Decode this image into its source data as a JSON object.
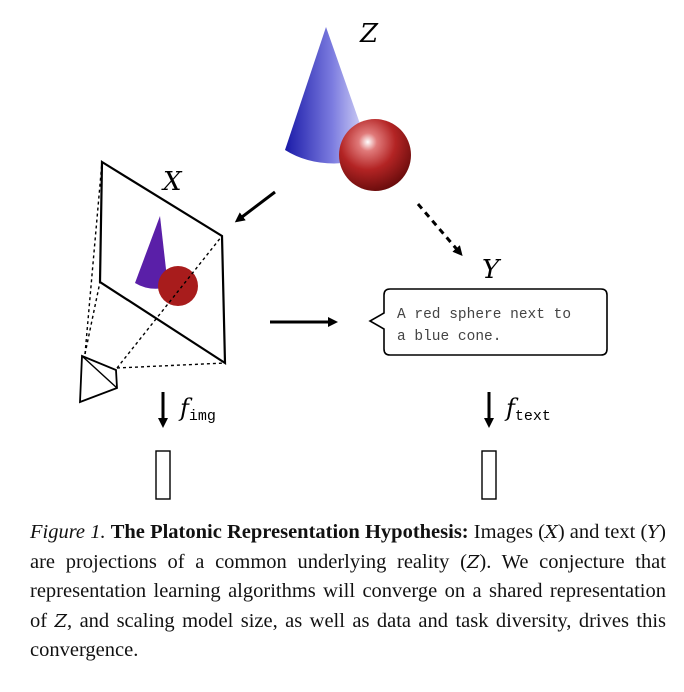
{
  "diagram": {
    "label_z": "Z",
    "label_x": "X",
    "label_y": "Y",
    "text_box_line1": "A red sphere next to",
    "text_box_line2": "a blue cone.",
    "f_img_symbol": "f",
    "f_img_sub": "img",
    "f_text_symbol": "f",
    "f_text_sub": "text",
    "colors": {
      "cone_blue": "#1f1fb0",
      "sphere_red": "#a81c1c",
      "cone_purple": "#5a1fa8"
    }
  },
  "caption": {
    "figure_label": "Figure 1.",
    "title": "The Platonic Representation Hypothesis:",
    "part1": " Images (",
    "var_x": "X",
    "part2": ") and text (",
    "var_y": "Y",
    "part3": ") are projections of a common underlying reality (",
    "var_z1": "Z",
    "part4": "). We conjecture that representation learning algorithms will converge on a shared representation of ",
    "var_z2": "Z",
    "part5": ", and scaling model size, as well as data and task diversity, drives this convergence."
  }
}
